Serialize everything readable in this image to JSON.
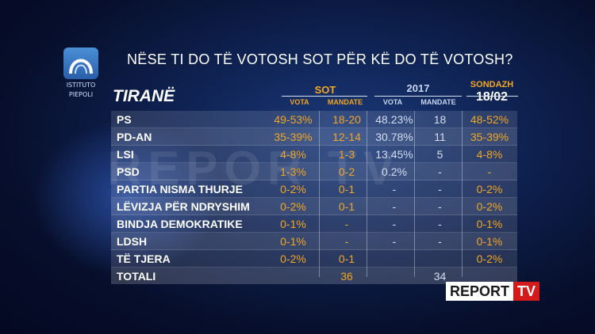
{
  "logo": {
    "line1": "ISTITUTO",
    "line2": "PIEPOLI"
  },
  "headline": "NËSE TI DO TË VOTOSH SOT PËR KË DO TË VOTOSH?",
  "region": "TIRANË",
  "headers": {
    "sot": "SOT",
    "year": "2017",
    "sondazh": "SONDAZH",
    "sondazh_date": "18/02",
    "vota": "VOTA",
    "mandate": "MANDATE"
  },
  "rows": [
    {
      "party": "PS",
      "sot_vota": "49-53%",
      "sot_mandate": "18-20",
      "v2017": "48.23%",
      "m2017": "18",
      "sondazh": "48-52%"
    },
    {
      "party": "PD-AN",
      "sot_vota": "35-39%",
      "sot_mandate": "12-14",
      "v2017": "30.78%",
      "m2017": "11",
      "sondazh": "35-39%"
    },
    {
      "party": "LSI",
      "sot_vota": "4-8%",
      "sot_mandate": "1-3",
      "v2017": "13.45%",
      "m2017": "5",
      "sondazh": "4-8%"
    },
    {
      "party": "PSD",
      "sot_vota": "1-3%",
      "sot_mandate": "0-2",
      "v2017": "0.2%",
      "m2017": "-",
      "sondazh": "-"
    },
    {
      "party": "PARTIA NISMA THURJE",
      "sot_vota": "0-2%",
      "sot_mandate": "0-1",
      "v2017": "-",
      "m2017": "-",
      "sondazh": "0-2%"
    },
    {
      "party": "LËVIZJA PËR NDRYSHIM",
      "sot_vota": "0-2%",
      "sot_mandate": "0-1",
      "v2017": "-",
      "m2017": "-",
      "sondazh": "0-2%"
    },
    {
      "party": "BINDJA DEMOKRATIKE",
      "sot_vota": "0-1%",
      "sot_mandate": "-",
      "v2017": "-",
      "m2017": "-",
      "sondazh": "0-1%"
    },
    {
      "party": "LDSH",
      "sot_vota": "0-1%",
      "sot_mandate": "-",
      "v2017": "-",
      "m2017": "-",
      "sondazh": "0-1%"
    },
    {
      "party": "TË TJERA",
      "sot_vota": "0-2%",
      "sot_mandate": "0-1",
      "v2017": "",
      "m2017": "",
      "sondazh": "0-2%"
    },
    {
      "party": "TOTALI",
      "sot_vota": "",
      "sot_mandate": "36",
      "v2017": "",
      "m2017": "34",
      "sondazh": ""
    }
  ],
  "watermark": "REPOR  TV",
  "brand": {
    "part1": "REPORT",
    "part2": "TV"
  },
  "colors": {
    "accent": "#f2a623",
    "brand_red": "#d41a1a"
  }
}
